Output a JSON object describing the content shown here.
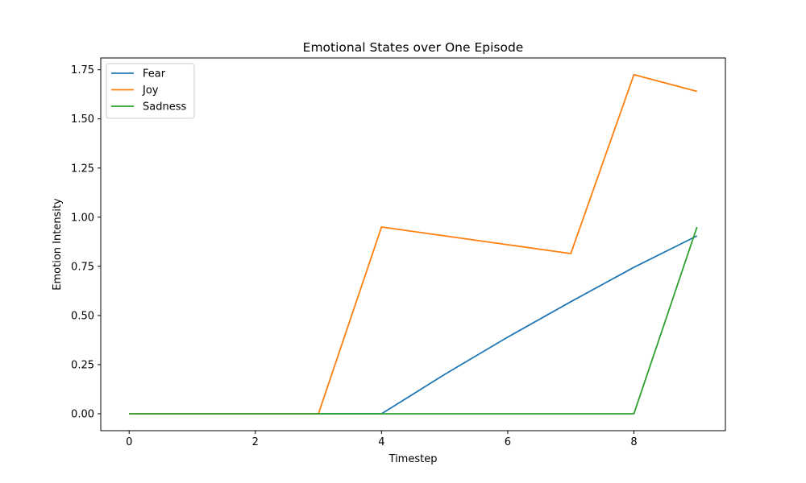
{
  "chart_data": {
    "type": "line",
    "title": "Emotional States over One Episode",
    "xlabel": "Timestep",
    "ylabel": "Emotion Intensity",
    "x": [
      0,
      1,
      2,
      3,
      4,
      5,
      6,
      7,
      8,
      9
    ],
    "xlim": [
      -0.45,
      9.45
    ],
    "ylim": [
      -0.086,
      1.81
    ],
    "xticks": [
      0,
      2,
      4,
      6,
      8
    ],
    "xtick_labels": [
      "0",
      "2",
      "4",
      "6",
      "8"
    ],
    "yticks": [
      0.0,
      0.25,
      0.5,
      0.75,
      1.0,
      1.25,
      1.5,
      1.75
    ],
    "ytick_labels": [
      "0.00",
      "0.25",
      "0.50",
      "0.75",
      "1.00",
      "1.25",
      "1.50",
      "1.75"
    ],
    "grid": false,
    "legend_position": "upper-left",
    "series": [
      {
        "name": "Fear",
        "color": "#1f77b4",
        "values": [
          0,
          0,
          0,
          0,
          0,
          0.2,
          0.39,
          0.57,
          0.745,
          0.905
        ]
      },
      {
        "name": "Joy",
        "color": "#ff7f0e",
        "values": [
          0,
          0,
          0,
          0,
          0.95,
          0.905,
          0.86,
          0.815,
          1.725,
          1.64
        ]
      },
      {
        "name": "Sadness",
        "color": "#2ca02c",
        "values": [
          0,
          0,
          0,
          0,
          0,
          0,
          0,
          0,
          0,
          0.95
        ]
      }
    ]
  }
}
